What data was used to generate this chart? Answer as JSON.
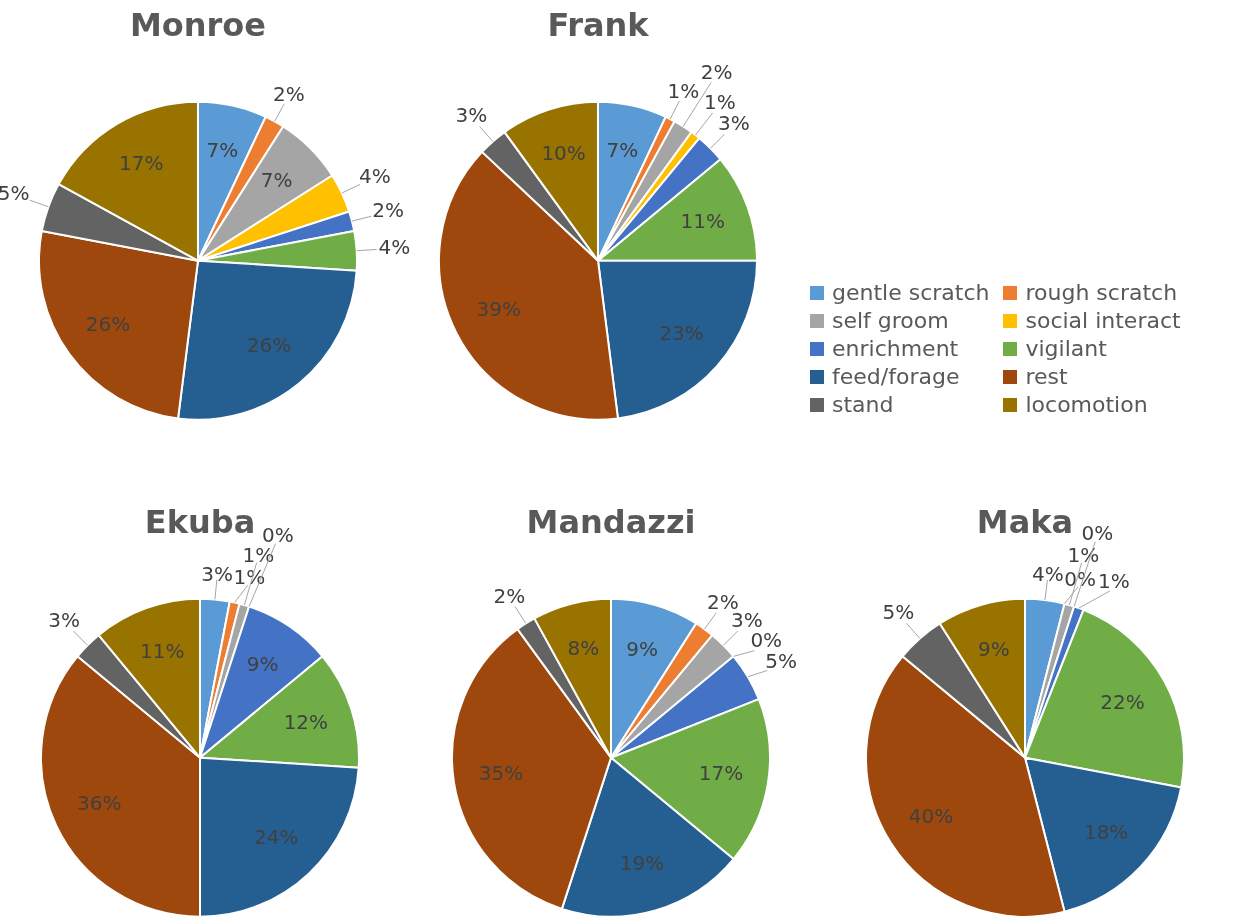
{
  "chart_data": [
    {
      "type": "pie",
      "title": "Monroe",
      "categories": [
        null,
        null,
        null,
        null,
        null,
        null,
        null,
        null,
        null,
        null
      ],
      "values": [
        7,
        2,
        7,
        4,
        2,
        4,
        26,
        26,
        5,
        17
      ],
      "value_labels": [
        "7%",
        "2%",
        "7%",
        "4%",
        "2%",
        "4%",
        "26%",
        "26%",
        "5%",
        "17%"
      ],
      "colors": [
        "#5b9bd5",
        "#ed7d31",
        "#a5a5a5",
        "#ffc000",
        "#4472c4",
        "#70ad47",
        "#255e91",
        "#9e480e",
        "#636363",
        "#997300"
      ]
    },
    {
      "type": "pie",
      "title": "Frank",
      "categories": [
        "gentle scratch",
        "rough scratch",
        "self groom",
        "social interact",
        "enrichment",
        "vigilant",
        "feed/forage",
        "rest",
        "stand",
        "locomotion"
      ],
      "values": [
        7,
        1,
        2,
        1,
        3,
        11,
        23,
        39,
        3,
        10
      ],
      "value_labels": [
        "7%",
        "1%",
        "2%",
        "1%",
        "3%",
        "11%",
        "23%",
        "39%",
        "3%",
        "10%"
      ],
      "colors": [
        "#5b9bd5",
        "#ed7d31",
        "#a5a5a5",
        "#ffc000",
        "#4472c4",
        "#70ad47",
        "#255e91",
        "#9e480e",
        "#636363",
        "#997300"
      ],
      "legend": "right"
    },
    {
      "type": "pie",
      "title": "Ekuba",
      "categories": [
        null,
        null,
        null,
        null,
        null,
        null,
        null,
        null,
        null,
        null
      ],
      "values": [
        3,
        1,
        1,
        0,
        9,
        12,
        24,
        36,
        3,
        11
      ],
      "value_labels": [
        "3%",
        "1%",
        "1%",
        "0%",
        "9%",
        "12%",
        "24%",
        "36%",
        "3%",
        "11%"
      ],
      "colors": [
        "#5b9bd5",
        "#ed7d31",
        "#a5a5a5",
        "#ffc000",
        "#4472c4",
        "#70ad47",
        "#255e91",
        "#9e480e",
        "#636363",
        "#997300"
      ]
    },
    {
      "type": "pie",
      "title": "Mandazzi",
      "categories": [
        null,
        null,
        null,
        null,
        null,
        null,
        null,
        null,
        null,
        null
      ],
      "values": [
        9,
        2,
        3,
        0,
        5,
        17,
        19,
        35,
        2,
        8
      ],
      "value_labels": [
        "9%",
        "2%",
        "3%",
        "0%",
        "5%",
        "17%",
        "19%",
        "35%",
        "2%",
        "8%"
      ],
      "colors": [
        "#5b9bd5",
        "#ed7d31",
        "#a5a5a5",
        "#ffc000",
        "#4472c4",
        "#70ad47",
        "#255e91",
        "#9e480e",
        "#636363",
        "#997300"
      ]
    },
    {
      "type": "pie",
      "title": "Maka",
      "categories": [
        null,
        null,
        null,
        null,
        null,
        null,
        null,
        null,
        null,
        null
      ],
      "values": [
        4,
        0,
        1,
        0,
        1,
        22,
        18,
        40,
        5,
        9
      ],
      "value_labels": [
        "4%",
        "0%",
        "1%",
        "0%",
        "1%",
        "22%",
        "18%",
        "40%",
        "5%",
        "9%"
      ],
      "colors": [
        "#5b9bd5",
        "#ed7d31",
        "#a5a5a5",
        "#ffc000",
        "#4472c4",
        "#70ad47",
        "#255e91",
        "#9e480e",
        "#636363",
        "#997300"
      ]
    }
  ]
}
